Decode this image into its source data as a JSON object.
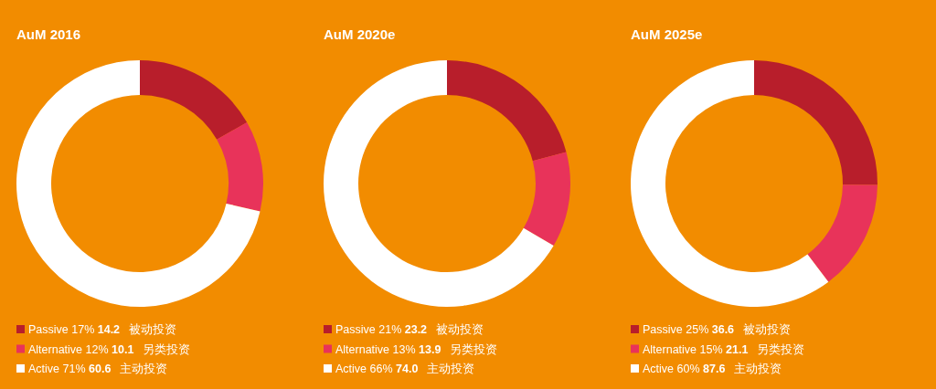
{
  "chart_data": [
    {
      "type": "donut",
      "title": "AuM 2016",
      "categories": [
        "Passive 17%",
        "Alternative 12%",
        "Active 71%"
      ],
      "values": [
        14.2,
        10.1,
        60.6
      ],
      "value_labels": [
        "14.2",
        "10.1",
        "60.6"
      ],
      "colors": [
        "#b81e2b",
        "#e8335a",
        "#ffffff"
      ],
      "annotations": [
        "被动投资",
        "另类投资",
        "主动投资"
      ],
      "legend": "bottom"
    },
    {
      "type": "donut",
      "title": "AuM 2020e",
      "categories": [
        "Passive 21%",
        "Alternative 13%",
        "Active 66%"
      ],
      "values": [
        23.2,
        13.9,
        74.0
      ],
      "value_labels": [
        "23.2",
        "13.9",
        "74.0"
      ],
      "colors": [
        "#b81e2b",
        "#e8335a",
        "#ffffff"
      ],
      "annotations": [
        "被动投资",
        "另类投资",
        "主动投资"
      ],
      "legend": "bottom"
    },
    {
      "type": "donut",
      "title": "AuM 2025e",
      "categories": [
        "Passive 25%",
        "Alternative 15%",
        "Active 60%"
      ],
      "values": [
        36.6,
        21.1,
        87.6
      ],
      "value_labels": [
        "36.6",
        "21.1",
        "87.6"
      ],
      "colors": [
        "#b81e2b",
        "#e8335a",
        "#ffffff"
      ],
      "annotations": [
        "被动投资",
        "另类投资",
        "主动投资"
      ],
      "legend": "bottom"
    }
  ]
}
